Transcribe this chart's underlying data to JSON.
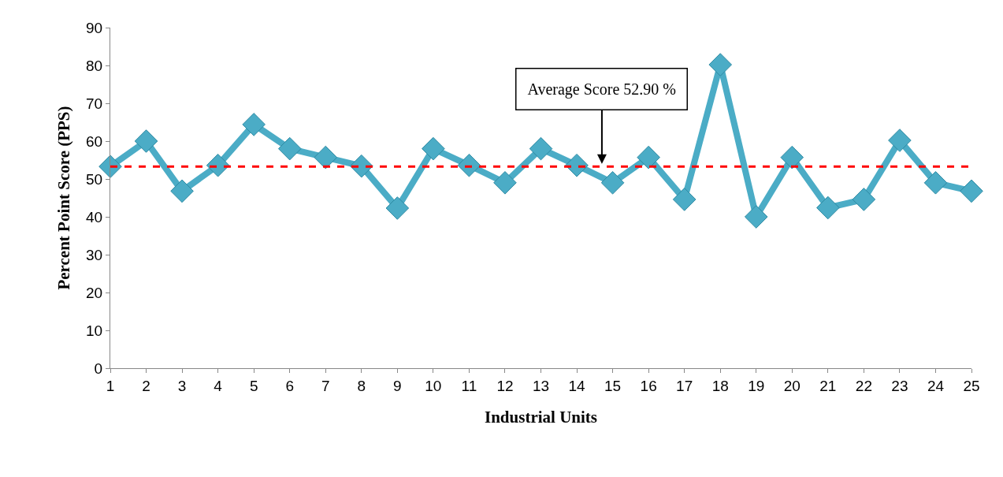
{
  "chart_data": {
    "type": "line",
    "xlabel": "Industrial Units",
    "ylabel": "Percent Point Score (PPS)",
    "x": [
      1,
      2,
      3,
      4,
      5,
      6,
      7,
      8,
      9,
      10,
      11,
      12,
      13,
      14,
      15,
      16,
      17,
      18,
      19,
      20,
      21,
      22,
      23,
      24,
      25
    ],
    "series": [
      {
        "color": "#4bacc6",
        "values": [
          53.3,
          60,
          46.8,
          53.6,
          64.4,
          58,
          55.7,
          53.4,
          42.3,
          58,
          53.6,
          49,
          58,
          53.6,
          49,
          55.7,
          44.6,
          80.2,
          40,
          55.7,
          42.4,
          44.6,
          60.2,
          49,
          46.8
        ]
      }
    ],
    "xlim": [
      1,
      25
    ],
    "xticks": [
      1,
      2,
      3,
      4,
      5,
      6,
      7,
      8,
      9,
      10,
      11,
      12,
      13,
      14,
      15,
      16,
      17,
      18,
      19,
      20,
      21,
      22,
      23,
      24,
      25
    ],
    "ylim": [
      0,
      90
    ],
    "yticks": [
      0,
      10,
      20,
      30,
      40,
      50,
      60,
      70,
      80,
      90
    ],
    "ref_lines": [
      {
        "axis": "y",
        "value": 53.3,
        "color": "#ff0000",
        "line_style": "dashed"
      }
    ],
    "annotations": [
      {
        "text": "Average Score 52.90 %",
        "x": 14.7,
        "y": 54
      }
    ],
    "marker": "diamond",
    "legend": false
  }
}
